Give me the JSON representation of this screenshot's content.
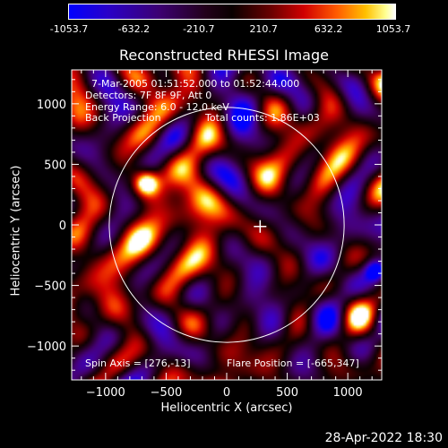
{
  "colorbar": {
    "tick_labels": [
      "-1053.7",
      "-632.2",
      "-210.7",
      "210.7",
      "632.2",
      "1053.7"
    ],
    "tick_values": [
      -1053.7,
      -632.2,
      -210.7,
      210.7,
      632.2,
      1053.7
    ],
    "colors": [
      "#0000ff",
      "#3c0070",
      "#0a0000",
      "#d00000",
      "#ffc000",
      "#ffffff"
    ]
  },
  "footer": {
    "timestamp": "28-Apr-2022 18:30"
  },
  "chart_data": {
    "type": "heatmap",
    "title": "Reconstructed RHESSI Image",
    "xlabel": "Heliocentric X (arcsec)",
    "ylabel": "Heliocentric Y (arcsec)",
    "xlim": [
      -1280,
      1280
    ],
    "ylim": [
      -1280,
      1280
    ],
    "x_ticks": [
      -1000,
      -500,
      0,
      500,
      1000
    ],
    "y_ticks": [
      -1000,
      -500,
      0,
      500,
      1000
    ],
    "x_tick_labels": [
      "−1000",
      "−500",
      "0",
      "500",
      "1000"
    ],
    "y_tick_labels": [
      "−1000",
      "−500",
      "0",
      "500",
      "1000"
    ],
    "annotations": {
      "time_range": "7-Mar-2005 01:51:52.000 to 01:52:44.000",
      "detectors": "Detectors: 7F 8F 9F, Att 0",
      "energy": "Energy Range: 6.0 - 12.0 keV",
      "method": "Back Projection",
      "counts": "Total counts: 1.86E+03",
      "spin_axis": "Spin Axis = [276,-13]",
      "flare_position": "Flare Position = [-665,347]"
    },
    "solar_disk": {
      "center": [
        0,
        0
      ],
      "radius_arcsec": 970
    },
    "map_center_marker": [
      276,
      -13
    ],
    "bright_source": {
      "x": -665,
      "y": 347
    },
    "value_range": [
      -1053.7,
      1053.7
    ]
  }
}
